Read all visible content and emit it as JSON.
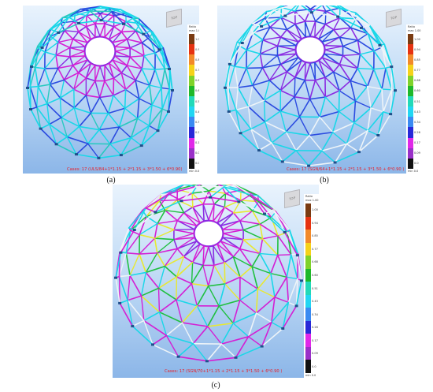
{
  "figures": [
    {
      "id": "a",
      "caption": "(a)",
      "case_text": "Cases: 17 (ULS/84+1*1.15 + 2*1.15 + 3*1.50 + 6*0.90)",
      "view_label": "TOP",
      "dominant_scheme": "a"
    },
    {
      "id": "b",
      "caption": "(b)",
      "case_text": "Cases: 17 (SGN/64+1*1.15 + 2*1.15 + 3*1.50 + 6*0.90 )",
      "view_label": "TOP",
      "dominant_scheme": "b"
    },
    {
      "id": "c",
      "caption": "(c)",
      "case_text": "Cases: 17 (SGN/70+1*1.15 + 2*1.15 + 3*1.50 + 6*0.90 )",
      "view_label": "TOP",
      "dominant_scheme": "c"
    }
  ],
  "legend": {
    "title": "Ratio",
    "max_label": "max  1.00",
    "min_label": "min  0.0",
    "ticks": [
      "1.00",
      "0.94",
      "0.85",
      "0.77",
      "0.68",
      "0.60",
      "0.51",
      "0.43",
      "0.34",
      "0.26",
      "0.17",
      "0.09",
      "0.0"
    ],
    "colors": [
      "#7a3b12",
      "#e63312",
      "#f28a2a",
      "#f5d21a",
      "#7fd22a",
      "#1fb82a",
      "#22d9b8",
      "#22d6f2",
      "#3a8af2",
      "#2828d8",
      "#e028e8",
      "#9a30c8",
      "#111111"
    ]
  },
  "member_colors": {
    "magenta": "#d41fd4",
    "purple": "#8a2be2",
    "blue": "#2b4be0",
    "cyan": "#19d7e8",
    "teal": "#28c9c0",
    "green": "#20c040",
    "yellow": "#e8e832",
    "white": "#eef4f8",
    "node": "#1f4f8a"
  }
}
